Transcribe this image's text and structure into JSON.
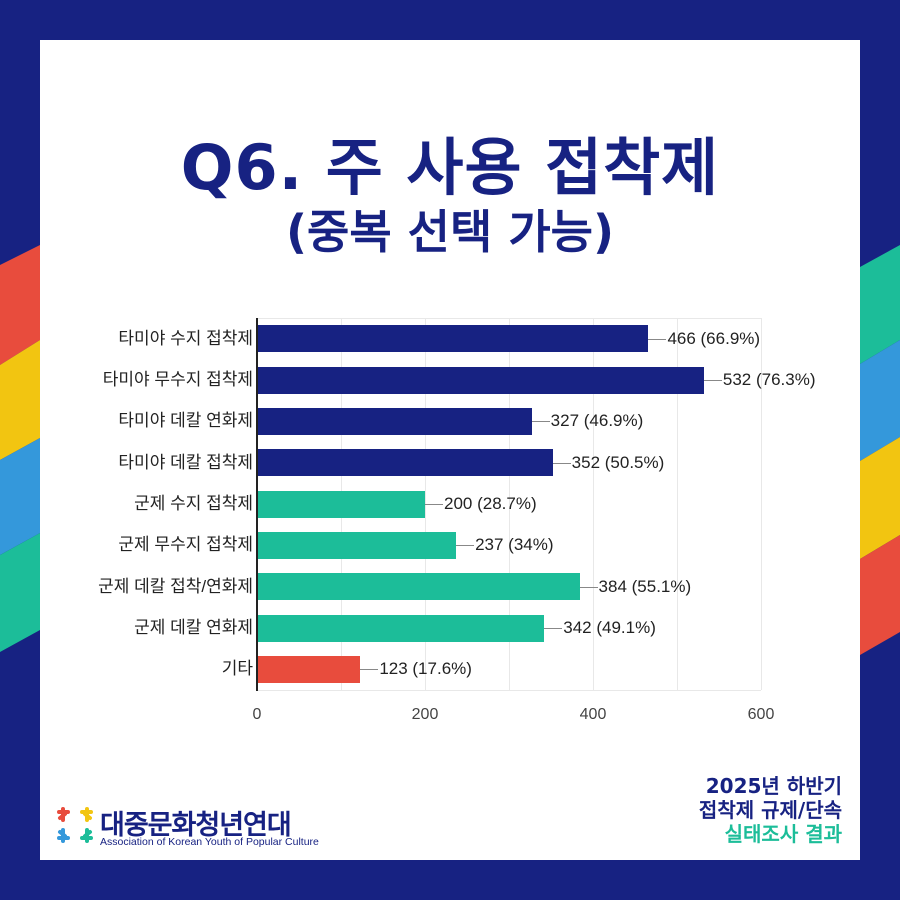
{
  "title": {
    "line1": "Q6. 주 사용 접착제",
    "line2": "(중복 선택 가능)"
  },
  "colors": {
    "navy": "#172282",
    "teal": "#1cbd99",
    "red": "#e84c3d",
    "yellow": "#f2c511",
    "blue": "#3498db"
  },
  "chart_data": {
    "type": "bar",
    "orientation": "horizontal",
    "title": "Q6. 주 사용 접착제 (중복 선택 가능)",
    "xlabel": "",
    "ylabel": "",
    "xlim": [
      0,
      600
    ],
    "x_ticks": [
      "0",
      "200",
      "400",
      "600"
    ],
    "grid": true,
    "categories": [
      "타미야 수지 접착제",
      "타미야 무수지 접착제",
      "타미야 데칼 연화제",
      "타미야 데칼 접착제",
      "군제 수지 접착제",
      "군제 무수지 접착제",
      "군제 데칼 접착/연화제",
      "군제 데칼 연화제",
      "기타"
    ],
    "values": [
      466,
      532,
      327,
      352,
      200,
      237,
      384,
      342,
      123
    ],
    "percentages": [
      "66.9%",
      "76.3%",
      "46.9%",
      "50.5%",
      "28.7%",
      "34%",
      "55.1%",
      "49.1%",
      "17.6%"
    ],
    "data_labels": [
      "466 (66.9%)",
      "532 (76.3%)",
      "327 (46.9%)",
      "352 (50.5%)",
      "200 (28.7%)",
      "237 (34%)",
      "384 (55.1%)",
      "342 (49.1%)",
      "123 (17.6%)"
    ],
    "bar_colors": [
      "#172282",
      "#172282",
      "#172282",
      "#172282",
      "#1cbd99",
      "#1cbd99",
      "#1cbd99",
      "#1cbd99",
      "#e84c3d"
    ]
  },
  "footer": {
    "org_name": "대중문화청년연대",
    "org_subtitle": "Association of Korean Youth of Popular Culture",
    "right_line1": "2025년 하반기",
    "right_line2": "접착제 규제/단속",
    "right_line3": "실태조사 결과"
  }
}
